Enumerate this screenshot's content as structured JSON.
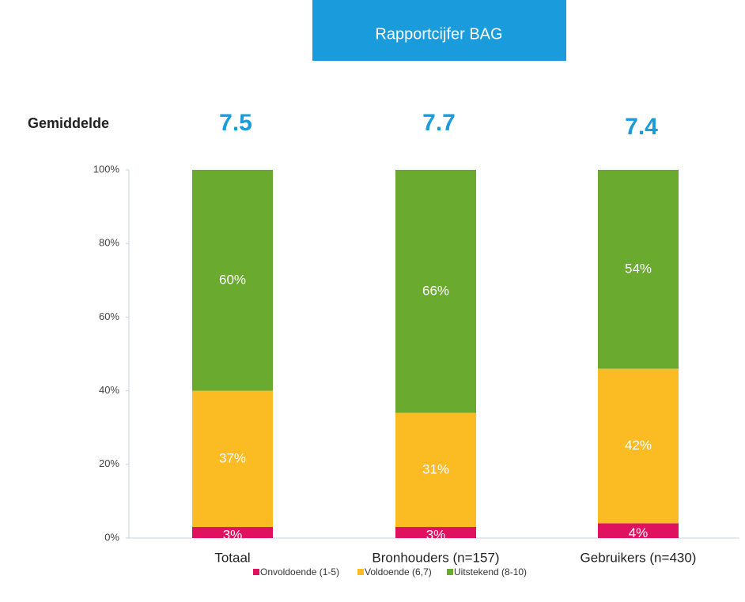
{
  "chart_data": {
    "type": "stacked_bar",
    "title": "Rapportcijfer BAG",
    "average_label": "Gemiddelde",
    "averages": [
      7.5,
      7.7,
      7.4
    ],
    "categories": [
      "Totaal",
      "Bronhouders (n=157)",
      "Gebruikers (n=430)"
    ],
    "series": [
      {
        "name": "Onvoldoende (1-5)",
        "color": "#e0115f",
        "values": [
          3,
          3,
          4
        ],
        "value_labels": [
          "3%",
          "3%",
          "4%"
        ]
      },
      {
        "name": "Voldoende (6,7)",
        "color": "#fbbc23",
        "values": [
          37,
          31,
          42
        ],
        "value_labels": [
          "37%",
          "31%",
          "42%"
        ]
      },
      {
        "name": "Uitstekend (8-10)",
        "color": "#6aaa2f",
        "values": [
          60,
          66,
          54
        ],
        "value_labels": [
          "60%",
          "66%",
          "54%"
        ]
      }
    ],
    "ylim": [
      0,
      100
    ],
    "yticks": [
      {
        "value": 0,
        "label": "0%"
      },
      {
        "value": 20,
        "label": "20%"
      },
      {
        "value": 40,
        "label": "40%"
      },
      {
        "value": 60,
        "label": "60%"
      },
      {
        "value": 80,
        "label": "80%"
      },
      {
        "value": 100,
        "label": "100%"
      }
    ],
    "legend": "bottom"
  }
}
